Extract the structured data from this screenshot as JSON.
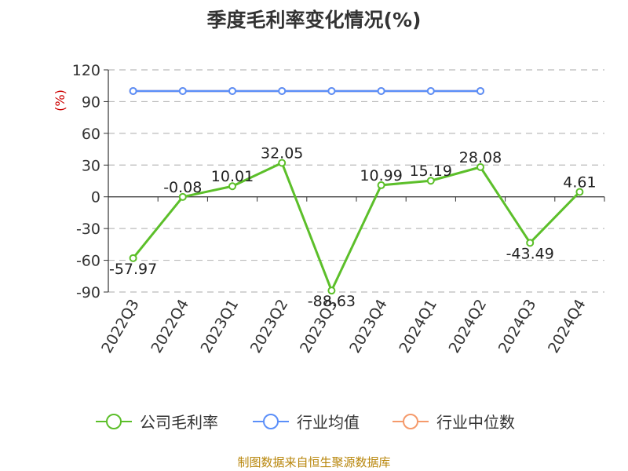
{
  "chart_data": {
    "type": "line",
    "title": "季度毛利率变化情况(%)",
    "ylabel": "(%)",
    "categories": [
      "2022Q3",
      "2022Q4",
      "2023Q1",
      "2023Q2",
      "2023Q3",
      "2023Q4",
      "2024Q1",
      "2024Q2",
      "2024Q3",
      "2024Q4"
    ],
    "yticks": [
      "120",
      "90",
      "60",
      "30",
      "0",
      "-30",
      "-60",
      "-90"
    ],
    "ylim": [
      -90,
      120
    ],
    "grid": true,
    "legend_position": "bottom",
    "series": [
      {
        "name": "公司毛利率",
        "color": "#5cbf2a",
        "values": [
          -57.97,
          -0.08,
          10.01,
          32.05,
          -88.63,
          10.99,
          15.19,
          28.08,
          -43.49,
          4.61
        ],
        "labels": [
          "-57.97",
          "-0.08",
          "10.01",
          "32.05",
          "-88.63",
          "10.99",
          "15.19",
          "28.08",
          "-43.49",
          "4.61"
        ]
      },
      {
        "name": "行业均值",
        "color": "#5b8ff9",
        "values": [
          100,
          100,
          100,
          100,
          100,
          100,
          100,
          100,
          null,
          null
        ]
      },
      {
        "name": "行业中位数",
        "color": "#f59a6b",
        "values": [
          100,
          100,
          100,
          100,
          100,
          100,
          100,
          100,
          null,
          null
        ]
      }
    ]
  },
  "source": "制图数据来自恒生聚源数据库"
}
